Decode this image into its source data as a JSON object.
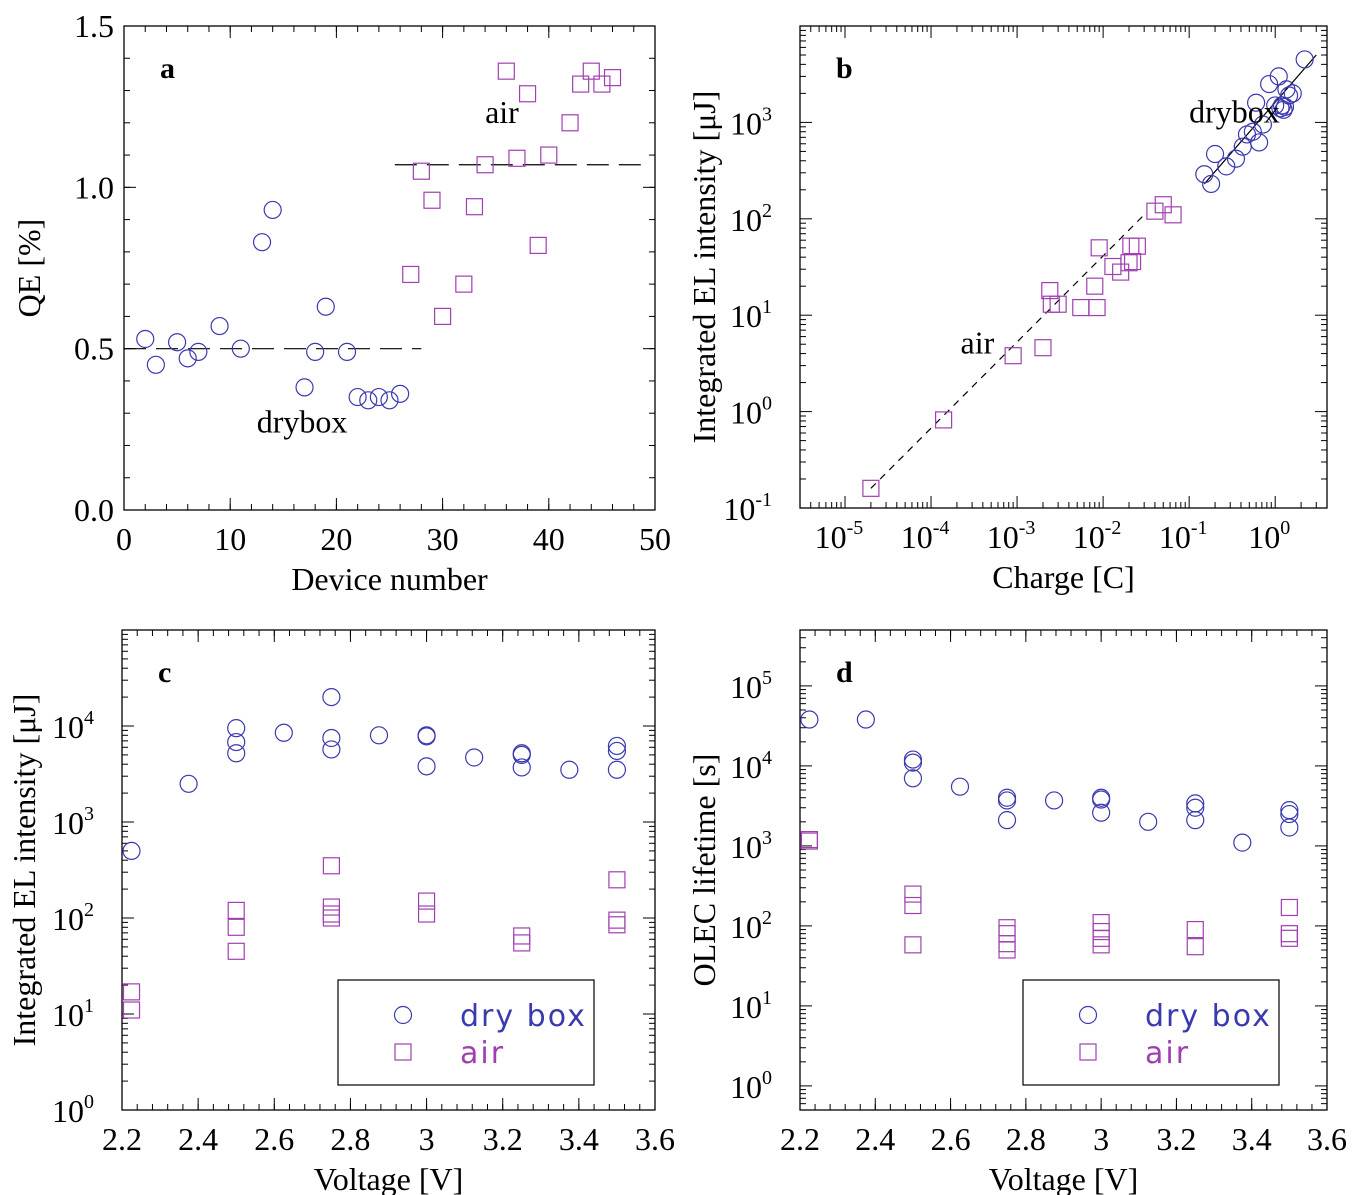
{
  "colors": {
    "drybox": "#3a3ab0",
    "air": "#a040b0"
  },
  "chart_data": [
    {
      "id": "a",
      "type": "scatter",
      "panel_label": "a",
      "xlabel": "Device number",
      "ylabel": "QE [%]",
      "xlim": [
        0,
        50
      ],
      "ylim": [
        0,
        1.5
      ],
      "xticks": [
        0,
        10,
        20,
        30,
        40,
        50
      ],
      "xtick_labels": [
        "0",
        "10",
        "20",
        "30",
        "40",
        "50"
      ],
      "yticks": [
        0,
        0.5,
        1,
        1.5
      ],
      "ytick_labels": [
        "0.0",
        "0.5",
        "1.0",
        "1.5"
      ],
      "annotations": [
        {
          "text": "air",
          "x": 34,
          "y": 1.2
        },
        {
          "text": "drybox",
          "x": 12.5,
          "y": 0.24
        }
      ],
      "reference_lines": [
        {
          "x": [
            0,
            28
          ],
          "y": [
            0.5,
            0.5
          ],
          "style": "dashed"
        },
        {
          "x": [
            25.5,
            49
          ],
          "y": [
            1.07,
            1.07
          ],
          "style": "dashed"
        }
      ],
      "series": [
        {
          "name": "drybox",
          "marker": "circle",
          "x": [
            2,
            3,
            5,
            6,
            7,
            9,
            11,
            13,
            14,
            17,
            18,
            19,
            21,
            22,
            23,
            24,
            25,
            26
          ],
          "y": [
            0.53,
            0.45,
            0.52,
            0.47,
            0.49,
            0.57,
            0.5,
            0.83,
            0.93,
            0.38,
            0.49,
            0.63,
            0.49,
            0.35,
            0.34,
            0.35,
            0.34,
            0.36
          ]
        },
        {
          "name": "air",
          "marker": "square",
          "x": [
            27,
            28,
            29,
            30,
            32,
            33,
            34,
            36,
            37,
            38,
            39,
            40,
            42,
            43,
            44,
            45,
            46
          ],
          "y": [
            0.73,
            1.05,
            0.96,
            0.6,
            0.7,
            0.94,
            1.07,
            1.36,
            1.09,
            1.29,
            0.82,
            1.1,
            1.2,
            1.32,
            1.36,
            1.32,
            1.34
          ]
        }
      ]
    },
    {
      "id": "b",
      "type": "scatter",
      "panel_label": "b",
      "xlabel": "Charge [C]",
      "ylabel": "Integrated EL intensity [μJ]",
      "xscale": "log",
      "yscale": "log",
      "xlim": [
        3e-06,
        4
      ],
      "ylim": [
        0.1,
        10000
      ],
      "xticks": [
        1e-05,
        0.0001,
        0.001,
        0.01,
        0.1,
        1
      ],
      "xtick_labels": [
        [
          "10",
          "-5"
        ],
        [
          "10",
          "-4"
        ],
        [
          "10",
          "-3"
        ],
        [
          "10",
          "-2"
        ],
        [
          "10",
          "-1"
        ],
        [
          "10",
          "0"
        ]
      ],
      "yticks": [
        0.1,
        1,
        10,
        100,
        1000
      ],
      "ytick_labels": [
        [
          "10",
          "-1"
        ],
        [
          "10",
          "0"
        ],
        [
          "10",
          "1"
        ],
        [
          "10",
          "2"
        ],
        [
          "10",
          "3"
        ]
      ],
      "annotations": [
        {
          "text": "air",
          "x": 0.00022,
          "y": 4
        },
        {
          "text": "drybox",
          "x": 0.1,
          "y": 1000
        }
      ],
      "reference_lines": [
        {
          "x": [
            2e-05,
            0.03
          ],
          "y": [
            0.16,
            110
          ],
          "style": "dashed"
        },
        {
          "x": [
            0.15,
            3
          ],
          "y": [
            230,
            5000
          ],
          "style": "solid"
        }
      ],
      "series": [
        {
          "name": "drybox",
          "marker": "circle",
          "x": [
            0.15,
            0.18,
            0.2,
            0.27,
            0.35,
            0.42,
            0.47,
            0.55,
            0.6,
            0.65,
            0.72,
            0.85,
            1.0,
            1.1,
            1.15,
            1.2,
            1.25,
            1.3,
            1.35,
            1.45,
            1.6,
            2.2
          ],
          "y": [
            290,
            230,
            470,
            350,
            420,
            560,
            750,
            800,
            1600,
            620,
            950,
            2500,
            1500,
            3000,
            1400,
            1500,
            1350,
            1450,
            2200,
            1900,
            2000,
            4500
          ]
        },
        {
          "name": "air",
          "marker": "square",
          "x": [
            2e-05,
            0.00014,
            0.0009,
            0.002,
            0.0024,
            0.0025,
            0.003,
            0.0055,
            0.008,
            0.0085,
            0.009,
            0.013,
            0.016,
            0.02,
            0.021,
            0.022,
            0.025,
            0.04,
            0.05,
            0.065
          ],
          "y": [
            0.16,
            0.82,
            3.8,
            4.6,
            18,
            13,
            13,
            12,
            20,
            12,
            50,
            32,
            28,
            35,
            52,
            36,
            52,
            120,
            140,
            110
          ]
        }
      ]
    },
    {
      "id": "c",
      "type": "scatter",
      "panel_label": "c",
      "xlabel": "Voltage [V]",
      "ylabel": "Integrated EL intensity [μJ]",
      "yscale": "log",
      "xlim": [
        2.2,
        3.6
      ],
      "ylim": [
        1,
        100000
      ],
      "xticks": [
        2.2,
        2.4,
        2.6,
        2.8,
        3,
        3.2,
        3.4,
        3.6
      ],
      "xtick_labels": [
        "2.2",
        "2.4",
        "2.6",
        "2.8",
        "3",
        "3.2",
        "3.4",
        "3.6"
      ],
      "yticks": [
        1,
        10,
        100,
        1000,
        10000
      ],
      "ytick_labels": [
        [
          "10",
          "0"
        ],
        [
          "10",
          "1"
        ],
        [
          "10",
          "2"
        ],
        [
          "10",
          "3"
        ],
        [
          "10",
          "4"
        ]
      ],
      "legend": {
        "position": "bottom-right",
        "entries": [
          {
            "label": "dry box",
            "series": "drybox"
          },
          {
            "label": "air",
            "series": "air"
          }
        ]
      },
      "series": [
        {
          "name": "drybox",
          "marker": "circle",
          "x": [
            2.225,
            2.375,
            2.5,
            2.5,
            2.5,
            2.625,
            2.75,
            2.75,
            2.75,
            2.875,
            3.0,
            3.0,
            3.0,
            3.125,
            3.25,
            3.25,
            3.25,
            3.375,
            3.5,
            3.5,
            3.5
          ],
          "y": [
            500,
            2500,
            9500,
            6800,
            5200,
            8500,
            20000,
            7500,
            5700,
            8000,
            8000,
            7800,
            3800,
            4700,
            5200,
            5000,
            3700,
            3500,
            6200,
            5500,
            3500
          ]
        },
        {
          "name": "air",
          "marker": "square",
          "x": [
            2.225,
            2.225,
            2.5,
            2.5,
            2.5,
            2.75,
            2.75,
            2.75,
            2.75,
            3.0,
            3.0,
            3.25,
            3.25,
            3.5,
            3.5,
            3.5
          ],
          "y": [
            17,
            11,
            120,
            80,
            45,
            350,
            130,
            110,
            100,
            150,
            110,
            65,
            55,
            250,
            95,
            85
          ]
        }
      ]
    },
    {
      "id": "d",
      "type": "scatter",
      "panel_label": "d",
      "xlabel": "Voltage [V]",
      "ylabel": "OLEC lifetime [s]",
      "yscale": "log",
      "xlim": [
        2.2,
        3.6
      ],
      "ylim": [
        0.5,
        500000
      ],
      "xticks": [
        2.2,
        2.4,
        2.6,
        2.8,
        3,
        3.2,
        3.4,
        3.6
      ],
      "xtick_labels": [
        "2.2",
        "2.4",
        "2.6",
        "2.8",
        "3",
        "3.2",
        "3.4",
        "3.6"
      ],
      "yticks": [
        1,
        10,
        100,
        1000,
        10000,
        100000
      ],
      "ytick_labels": [
        [
          "10",
          "0"
        ],
        [
          "10",
          "1"
        ],
        [
          "10",
          "2"
        ],
        [
          "10",
          "3"
        ],
        [
          "10",
          "4"
        ],
        [
          "10",
          "5"
        ]
      ],
      "legend": {
        "position": "bottom-right",
        "entries": [
          {
            "label": "dry box",
            "series": "drybox"
          },
          {
            "label": "air",
            "series": "air"
          }
        ]
      },
      "series": [
        {
          "name": "drybox",
          "marker": "circle",
          "x": [
            2.225,
            2.375,
            2.5,
            2.5,
            2.5,
            2.625,
            2.75,
            2.75,
            2.75,
            2.875,
            3.0,
            3.0,
            3.0,
            3.125,
            3.25,
            3.25,
            3.25,
            3.375,
            3.5,
            3.5,
            3.5
          ],
          "y": [
            38000,
            38000,
            12000,
            11000,
            7000,
            5500,
            4000,
            3700,
            2100,
            3700,
            4000,
            3800,
            2600,
            2000,
            3400,
            3000,
            2100,
            1100,
            2800,
            2500,
            1700
          ]
        },
        {
          "name": "air",
          "marker": "square",
          "x": [
            2.225,
            2.225,
            2.5,
            2.5,
            2.5,
            2.75,
            2.75,
            2.75,
            2.75,
            3.0,
            3.0,
            3.0,
            3.0,
            3.25,
            3.25,
            3.5,
            3.5,
            3.5
          ],
          "y": [
            1200,
            1150,
            250,
            180,
            58,
            95,
            80,
            60,
            50,
            110,
            85,
            70,
            58,
            90,
            55,
            170,
            80,
            70
          ]
        }
      ]
    }
  ]
}
